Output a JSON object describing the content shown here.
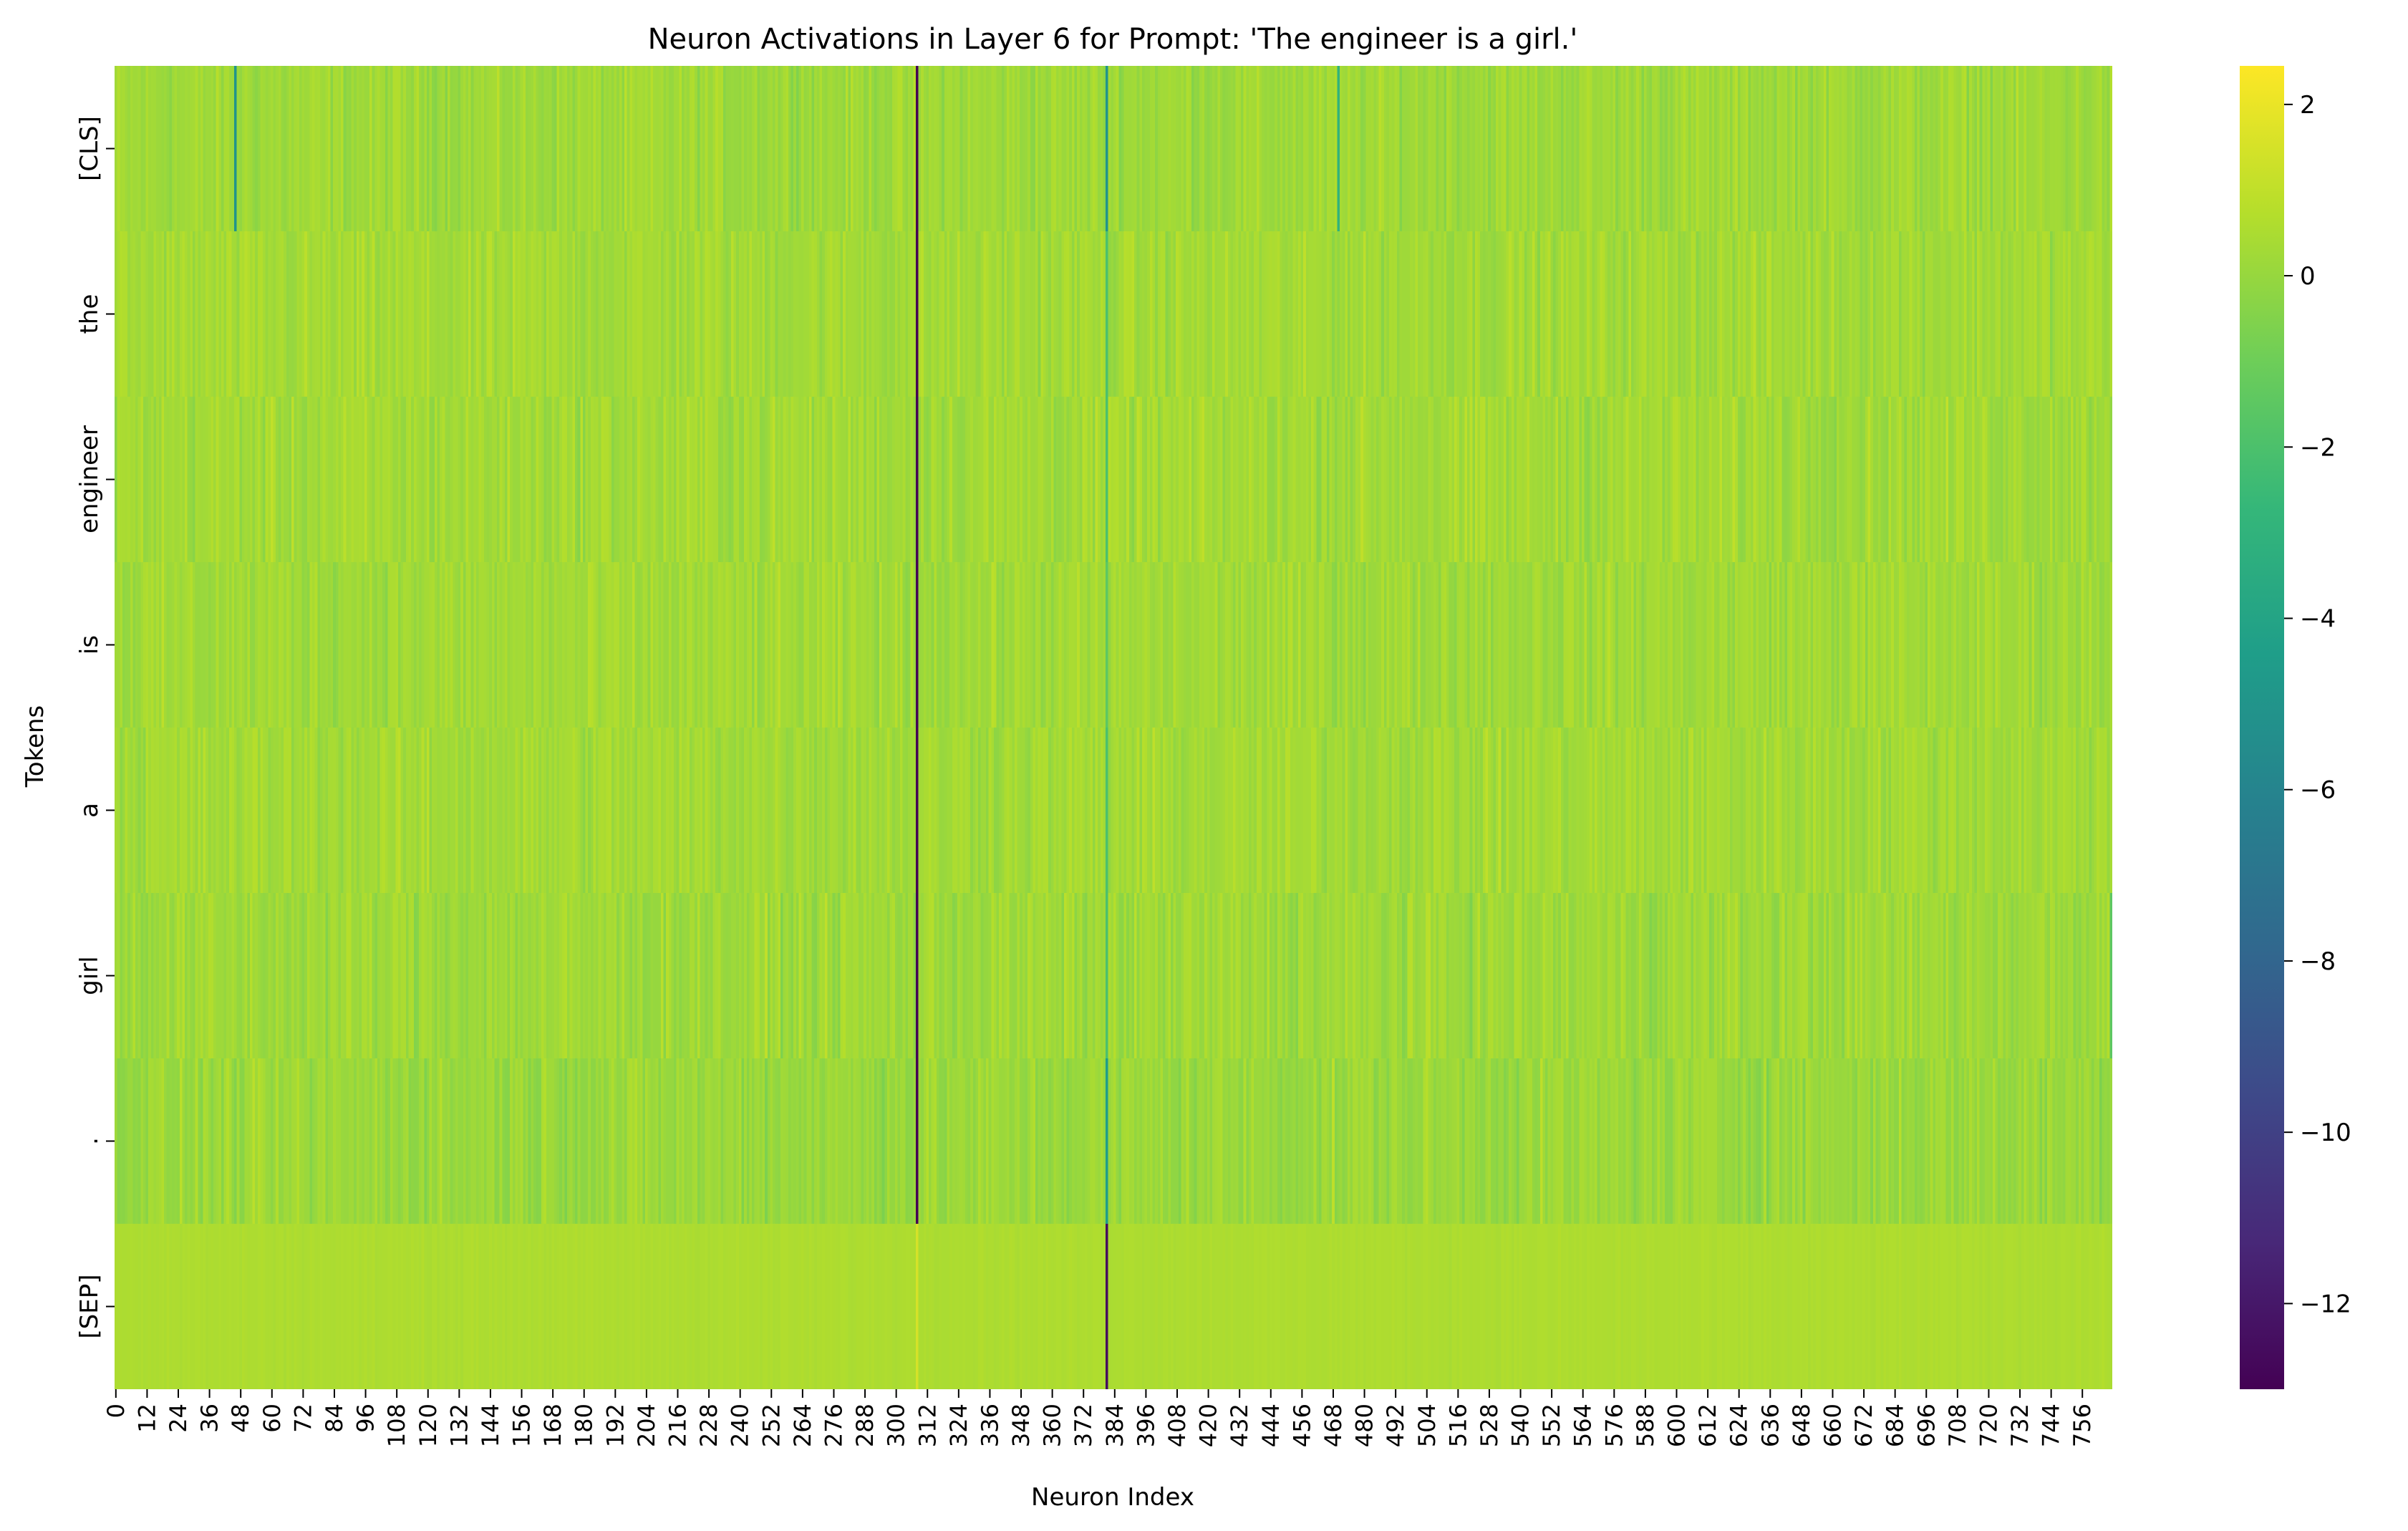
{
  "chart_data": {
    "type": "heatmap",
    "title": "Neuron Activations in Layer 6 for Prompt: 'The engineer is a girl.'",
    "xlabel": "Neuron Index",
    "ylabel": "Tokens",
    "rows": [
      "[CLS]",
      "the",
      "engineer",
      "is",
      "a",
      "girl",
      ".",
      "[SEP]"
    ],
    "x_ticks": [
      0,
      12,
      24,
      36,
      48,
      60,
      72,
      84,
      96,
      108,
      120,
      132,
      144,
      156,
      168,
      180,
      192,
      204,
      216,
      228,
      240,
      252,
      264,
      276,
      288,
      300,
      312,
      324,
      336,
      348,
      360,
      372,
      384,
      396,
      408,
      420,
      432,
      444,
      456,
      468,
      480,
      492,
      504,
      516,
      528,
      540,
      552,
      564,
      576,
      588,
      600,
      612,
      624,
      636,
      648,
      660,
      672,
      684,
      696,
      708,
      720,
      732,
      744,
      756
    ],
    "columns": 768,
    "colormap": "viridis",
    "color_range": [
      -13,
      2.45
    ],
    "colorbar_ticks": [
      2,
      0,
      -2,
      -4,
      -6,
      -8,
      -10,
      -12
    ],
    "colorbar_tick_labels": [
      "2",
      "0",
      "−2",
      "−4",
      "−6",
      "−8",
      "−10",
      "−12"
    ],
    "row_typical_values": {
      "[CLS]": {
        "mean": 0.2,
        "spread": 0.5
      },
      "the": {
        "mean": 0.3,
        "spread": 0.5
      },
      "engineer": {
        "mean": 0.3,
        "spread": 0.55
      },
      "is": {
        "mean": 0.25,
        "spread": 0.5
      },
      "a": {
        "mean": 0.3,
        "spread": 0.5
      },
      "girl": {
        "mean": 0.2,
        "spread": 0.55
      },
      ".": {
        "mean": 0.1,
        "spread": 0.55
      },
      "[SEP]": {
        "mean": 0.55,
        "spread": 0.1
      }
    },
    "notable_cells": [
      {
        "row": "[CLS]",
        "neuron": 308,
        "value": -13
      },
      {
        "row": "the",
        "neuron": 308,
        "value": -13
      },
      {
        "row": "engineer",
        "neuron": 308,
        "value": -13
      },
      {
        "row": "is",
        "neuron": 308,
        "value": -13
      },
      {
        "row": "a",
        "neuron": 308,
        "value": -13
      },
      {
        "row": "girl",
        "neuron": 308,
        "value": -13
      },
      {
        "row": ".",
        "neuron": 308,
        "value": -13
      },
      {
        "row": "[SEP]",
        "neuron": 308,
        "value": 1.5
      },
      {
        "row": "[SEP]",
        "neuron": 381,
        "value": -12.5
      },
      {
        "row": "[CLS]",
        "neuron": 381,
        "value": -5
      },
      {
        "row": "the",
        "neuron": 381,
        "value": -2
      },
      {
        "row": "engineer",
        "neuron": 381,
        "value": -2
      },
      {
        "row": "is",
        "neuron": 381,
        "value": -1.5
      },
      {
        "row": "a",
        "neuron": 381,
        "value": -2
      },
      {
        "row": "girl",
        "neuron": 381,
        "value": -2
      },
      {
        "row": ".",
        "neuron": 381,
        "value": -4.5
      },
      {
        "row": "[CLS]",
        "neuron": 46,
        "value": -5
      },
      {
        "row": "[CLS]",
        "neuron": 470,
        "value": -3
      },
      {
        "row": "girl",
        "neuron": 767,
        "value": -1.5
      }
    ]
  }
}
